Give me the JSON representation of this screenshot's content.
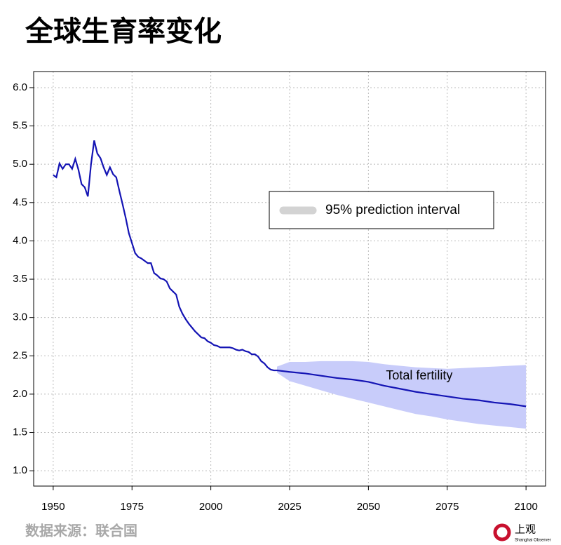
{
  "chart_data": {
    "type": "line",
    "title": "全球生育率变化",
    "source": "数据来源：联合国",
    "brand": {
      "name": "上观",
      "subtitle": "Shanghai Observer"
    },
    "x": [
      1950,
      1951,
      1952,
      1953,
      1954,
      1955,
      1956,
      1957,
      1958,
      1959,
      1960,
      1961,
      1962,
      1963,
      1964,
      1965,
      1966,
      1967,
      1968,
      1969,
      1970,
      1971,
      1972,
      1973,
      1974,
      1975,
      1976,
      1977,
      1978,
      1979,
      1980,
      1981,
      1982,
      1983,
      1984,
      1985,
      1986,
      1987,
      1988,
      1989,
      1990,
      1991,
      1992,
      1993,
      1994,
      1995,
      1996,
      1997,
      1998,
      1999,
      2000,
      2001,
      2002,
      2003,
      2004,
      2005,
      2006,
      2007,
      2008,
      2009,
      2010,
      2011,
      2012,
      2013,
      2014,
      2015,
      2016,
      2017,
      2018,
      2019,
      2020,
      2021,
      2025,
      2030,
      2035,
      2040,
      2045,
      2050,
      2055,
      2060,
      2065,
      2070,
      2075,
      2080,
      2085,
      2090,
      2095,
      2100
    ],
    "series": [
      {
        "name": "Total fertility",
        "color": "#1414b4",
        "values": [
          4.86,
          4.83,
          5.01,
          4.94,
          5.0,
          5.0,
          4.94,
          5.07,
          4.93,
          4.74,
          4.7,
          4.58,
          5.0,
          5.31,
          5.14,
          5.08,
          4.96,
          4.86,
          4.96,
          4.87,
          4.83,
          4.65,
          4.48,
          4.3,
          4.1,
          3.97,
          3.84,
          3.79,
          3.77,
          3.74,
          3.71,
          3.71,
          3.58,
          3.55,
          3.51,
          3.5,
          3.47,
          3.38,
          3.34,
          3.3,
          3.14,
          3.05,
          2.98,
          2.92,
          2.87,
          2.82,
          2.78,
          2.74,
          2.73,
          2.69,
          2.67,
          2.64,
          2.63,
          2.61,
          2.61,
          2.61,
          2.61,
          2.6,
          2.58,
          2.57,
          2.58,
          2.56,
          2.55,
          2.52,
          2.52,
          2.49,
          2.43,
          2.4,
          2.35,
          2.32,
          2.31,
          2.31,
          2.29,
          2.27,
          2.24,
          2.21,
          2.19,
          2.16,
          2.11,
          2.07,
          2.03,
          2.0,
          1.97,
          1.94,
          1.92,
          1.89,
          1.87,
          1.84
        ]
      }
    ],
    "interval": {
      "name": "95% prediction interval",
      "color": "#c8ccfa",
      "legend_color": "#d3d3d3",
      "x": [
        2021,
        2025,
        2030,
        2035,
        2040,
        2045,
        2050,
        2055,
        2060,
        2065,
        2070,
        2075,
        2080,
        2085,
        2090,
        2095,
        2100
      ],
      "lower": [
        2.28,
        2.17,
        2.11,
        2.05,
        1.99,
        1.94,
        1.89,
        1.84,
        1.79,
        1.74,
        1.71,
        1.67,
        1.64,
        1.61,
        1.59,
        1.57,
        1.55
      ],
      "upper": [
        2.36,
        2.42,
        2.42,
        2.43,
        2.43,
        2.43,
        2.42,
        2.39,
        2.37,
        2.35,
        2.34,
        2.33,
        2.34,
        2.35,
        2.36,
        2.37,
        2.38
      ]
    },
    "xlim": [
      1943.8,
      2106.2
    ],
    "ylim": [
      0.8,
      6.21
    ],
    "xticks": [
      1950,
      1975,
      2000,
      2025,
      2050,
      2075,
      2100
    ],
    "yticks": [
      {
        "value": 1,
        "label": "1.0"
      },
      1.5,
      {
        "value": 2,
        "label": "2.0"
      },
      2.5,
      {
        "value": 3,
        "label": "3.0"
      },
      3.5,
      {
        "value": 4,
        "label": "4.0"
      },
      4.5,
      {
        "value": 5,
        "label": "5.0"
      },
      5.5,
      {
        "value": 6,
        "label": "6.0"
      }
    ],
    "grid": true,
    "legend": "upper right"
  }
}
